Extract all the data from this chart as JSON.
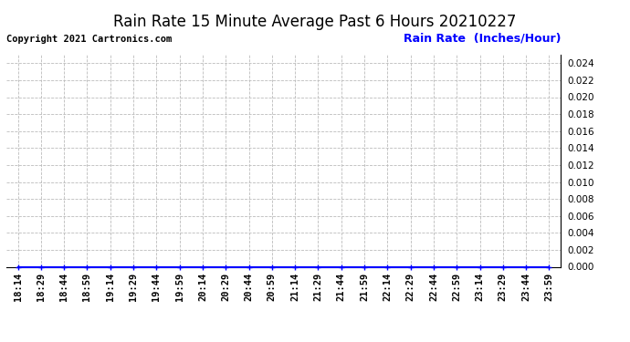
{
  "title": "Rain Rate 15 Minute Average Past 6 Hours 20210227",
  "ylabel": "Rain Rate  (Inches/Hour)",
  "copyright_text": "Copyright 2021 Cartronics.com",
  "background_color": "#ffffff",
  "plot_bg_color": "#ffffff",
  "grid_color": "#bbbbbb",
  "line_color": "#0000ff",
  "title_color": "#000000",
  "ylabel_color": "#0000ff",
  "copyright_color": "#000000",
  "x_tick_labels": [
    "18:14",
    "18:29",
    "18:44",
    "18:59",
    "19:14",
    "19:29",
    "19:44",
    "19:59",
    "20:14",
    "20:29",
    "20:44",
    "20:59",
    "21:14",
    "21:29",
    "21:44",
    "21:59",
    "22:14",
    "22:29",
    "22:44",
    "22:59",
    "23:14",
    "23:29",
    "23:44",
    "23:59"
  ],
  "y_values": [
    0.0,
    0.0,
    0.0,
    0.0,
    0.0,
    0.0,
    0.0,
    0.0,
    0.0,
    0.0,
    0.0,
    0.0,
    0.0,
    0.0,
    0.0,
    0.0,
    0.0,
    0.0,
    0.0,
    0.0,
    0.0,
    0.0,
    0.0,
    0.0
  ],
  "ylim": [
    0.0,
    0.025
  ],
  "yticks": [
    0.0,
    0.002,
    0.004,
    0.006,
    0.008,
    0.01,
    0.012,
    0.014,
    0.016,
    0.018,
    0.02,
    0.022,
    0.024
  ],
  "marker": "+",
  "marker_size": 5,
  "line_width": 1.5,
  "title_fontsize": 12,
  "ylabel_fontsize": 9,
  "tick_fontsize": 7.5,
  "copyright_fontsize": 7.5
}
